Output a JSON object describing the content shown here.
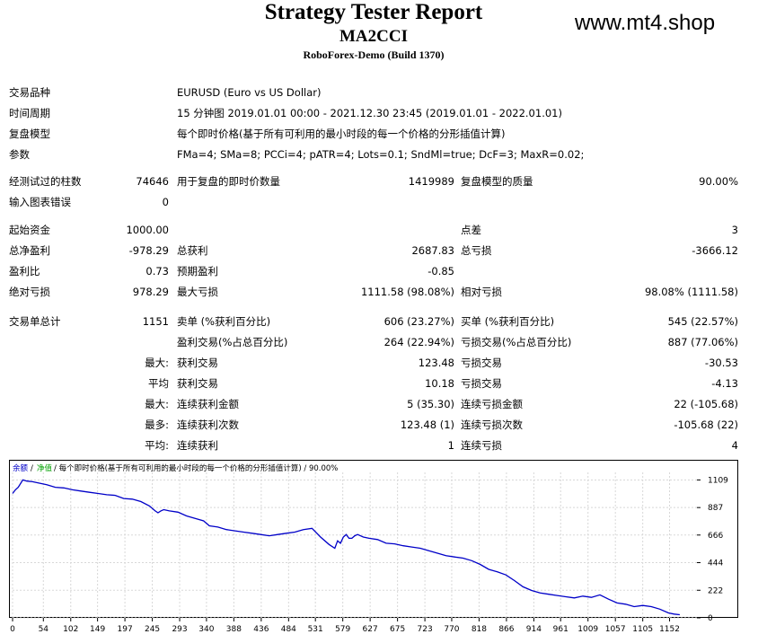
{
  "header": {
    "title": "Strategy Tester Report",
    "expert": "MA2CCI",
    "server": "RoboForex-Demo (Build 1370)",
    "site": "www.mt4.shop"
  },
  "info": {
    "symbol_label": "交易品种",
    "symbol": "EURUSD (Euro vs US Dollar)",
    "period_label": "时间周期",
    "period": "15 分钟图 2019.01.01 00:00 - 2021.12.30 23:45 (2019.01.01 - 2022.01.01)",
    "model_label": "复盘模型",
    "model": "每个即时价格(基于所有可利用的最小时段的每一个价格的分形插值计算)",
    "params_label": "参数",
    "params": "FMa=4; SMa=8; PCCi=4; pATR=4; Lots=0.1; SndMl=true; DcF=3; MaxR=0.02;"
  },
  "stats": {
    "bars_label": "经测试过的柱数",
    "bars": "74646",
    "ticks_label": "用于复盘的即时价数量",
    "ticks": "1419989",
    "quality_label": "复盘模型的质量",
    "quality": "90.00%",
    "errors_label": "输入图表错误",
    "errors": "0",
    "deposit_label": "起始资金",
    "deposit": "1000.00",
    "spread_label": "点差",
    "spread": "3",
    "net_label": "总净盈利",
    "net": "-978.29",
    "gross_profit_label": "总获利",
    "gross_profit": "2687.83",
    "gross_loss_label": "总亏损",
    "gross_loss": "-3666.12",
    "pf_label": "盈利比",
    "pf": "0.73",
    "payoff_label": "预期盈利",
    "payoff": "-0.85",
    "abs_dd_label": "绝对亏损",
    "abs_dd": "978.29",
    "max_dd_label": "最大亏损",
    "max_dd": "1111.58 (98.08%)",
    "rel_dd_label": "相对亏损",
    "rel_dd": "98.08% (1111.58)",
    "trades_label": "交易单总计",
    "trades": "1151",
    "short_label": "卖单 (%获利百分比)",
    "short": "606 (23.27%)",
    "long_label": "买单 (%获利百分比)",
    "long": "545 (22.57%)",
    "win_label": "盈利交易(%占总百分比)",
    "win": "264 (22.94%)",
    "loss_label": "亏损交易(%占总百分比)",
    "loss": "887 (77.06%)",
    "max_prefix": "最大:",
    "largest_win_label": "获利交易",
    "largest_win": "123.48",
    "largest_loss_label": "亏损交易",
    "largest_loss": "-30.53",
    "avg_prefix": "平均",
    "avg_win_label": "获利交易",
    "avg_win": "10.18",
    "avg_loss_label": "亏损交易",
    "avg_loss": "-4.13",
    "max2_prefix": "最大:",
    "cons_win_money_label": "连续获利金额",
    "cons_win_money": "5 (35.30)",
    "cons_loss_money_label": "连续亏损金额",
    "cons_loss_money": "22 (-105.68)",
    "most_prefix": "最多:",
    "cons_win_count_label": "连续获利次数",
    "cons_win_count": "123.48 (1)",
    "cons_loss_count_label": "连续亏损次数",
    "cons_loss_count": "-105.68 (22)",
    "avg2_prefix": "平均:",
    "avg_cons_win_label": "连续获利",
    "avg_cons_win": "1",
    "avg_cons_loss_label": "连续亏损",
    "avg_cons_loss": "4"
  },
  "chart_data": {
    "type": "line",
    "legend_balance": "余额",
    "legend_equity": "净值",
    "legend_rest": "/ 每个即时价格(基于所有可利用的最小时段的每一个价格的分形插值计算) / 90.00%",
    "x_ticks": [
      "0",
      "54",
      "102",
      "149",
      "197",
      "245",
      "293",
      "340",
      "388",
      "436",
      "484",
      "531",
      "579",
      "627",
      "675",
      "723",
      "770",
      "818",
      "866",
      "914",
      "961",
      "1009",
      "1057",
      "1105",
      "1152"
    ],
    "y_ticks": [
      "1109",
      "887",
      "666",
      "444",
      "222",
      "0"
    ],
    "xlim": [
      0,
      1200
    ],
    "ylim": [
      0,
      1170
    ],
    "colors": {
      "balance": "#0000c8",
      "equity": "#00a000",
      "grid": "#d8d8d8"
    },
    "series": [
      {
        "name": "余额",
        "x": [
          0,
          5,
          10,
          18,
          25,
          35,
          45,
          60,
          75,
          90,
          105,
          120,
          135,
          150,
          165,
          180,
          195,
          210,
          225,
          240,
          250,
          255,
          260,
          265,
          275,
          290,
          305,
          320,
          335,
          345,
          360,
          375,
          390,
          405,
          420,
          435,
          450,
          465,
          480,
          495,
          510,
          525,
          540,
          555,
          565,
          570,
          575,
          580,
          585,
          590,
          595,
          600,
          605,
          615,
          625,
          640,
          655,
          670,
          685,
          700,
          715,
          730,
          745,
          760,
          775,
          790,
          805,
          820,
          835,
          850,
          865,
          880,
          895,
          910,
          925,
          940,
          955,
          970,
          985,
          1000,
          1015,
          1030,
          1045,
          1060,
          1075,
          1090,
          1105,
          1120,
          1135,
          1150,
          1160,
          1170
        ],
        "y": [
          1000,
          1030,
          1050,
          1109,
          1100,
          1095,
          1085,
          1070,
          1050,
          1045,
          1030,
          1020,
          1010,
          1000,
          990,
          985,
          960,
          955,
          935,
          900,
          860,
          845,
          860,
          870,
          860,
          850,
          820,
          800,
          780,
          740,
          730,
          710,
          700,
          690,
          680,
          670,
          660,
          670,
          680,
          690,
          710,
          720,
          650,
          590,
          560,
          620,
          600,
          650,
          670,
          640,
          640,
          660,
          670,
          650,
          640,
          630,
          600,
          595,
          580,
          570,
          560,
          540,
          520,
          500,
          490,
          480,
          460,
          430,
          390,
          370,
          345,
          300,
          250,
          220,
          200,
          190,
          180,
          170,
          160,
          175,
          165,
          185,
          150,
          120,
          110,
          90,
          100,
          90,
          70,
          40,
          30,
          25
        ]
      }
    ]
  }
}
